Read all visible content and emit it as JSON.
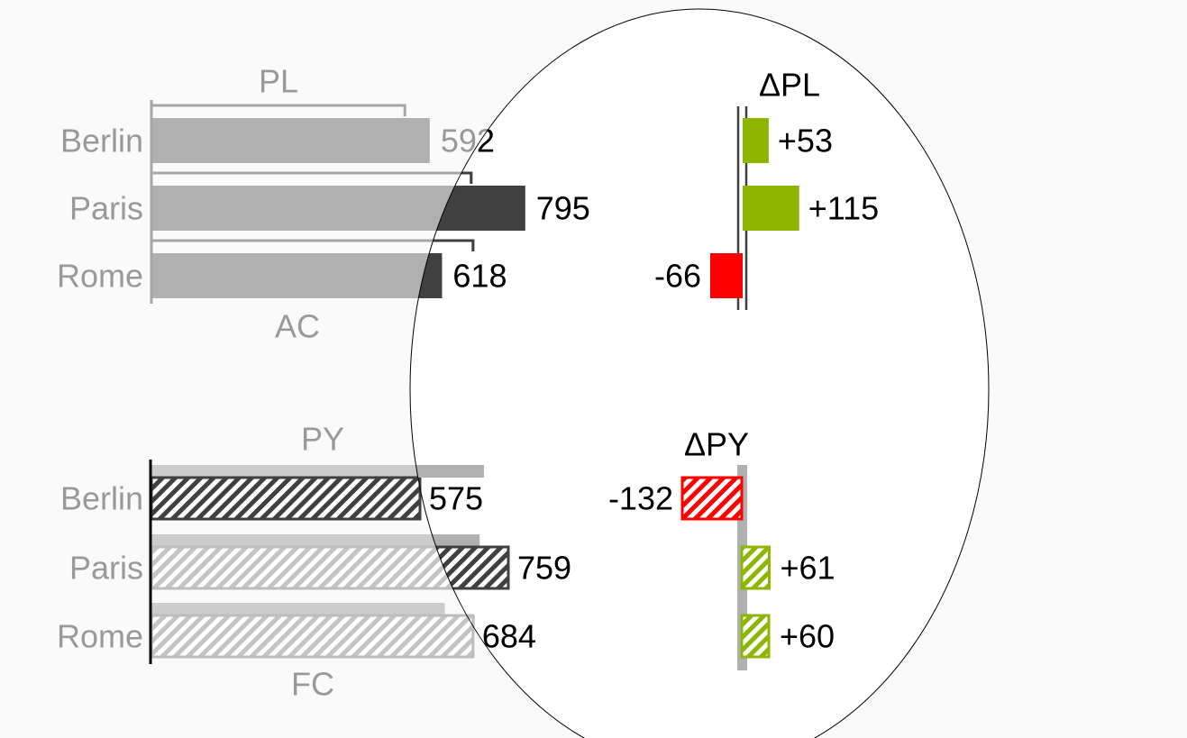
{
  "colors": {
    "background": "#fafafa",
    "gray_bar": "#b0b0b0",
    "dark_bar": "#404040",
    "muted_text": "#999999",
    "positive": "#8db600",
    "negative": "#ff0000",
    "plan_outline": "#a6a6a6",
    "py_bar": "#cccccc",
    "focus_ellipse_fill": "#ffffff"
  },
  "chart_data": [
    {
      "type": "bar",
      "orientation": "horizontal",
      "label_top": "PL",
      "label_bottom": "AC",
      "categories": [
        "Berlin",
        "Paris",
        "Rome"
      ],
      "series": [
        {
          "name": "AC",
          "values": [
            592,
            795,
            618
          ]
        },
        {
          "name": "PL",
          "values": [
            539,
            680,
            684
          ]
        }
      ],
      "value_labels": [
        "592",
        "795",
        "618"
      ]
    },
    {
      "type": "bar",
      "orientation": "horizontal",
      "variance": true,
      "title": "ΔPL",
      "categories": [
        "Berlin",
        "Paris",
        "Rome"
      ],
      "values": [
        53,
        115,
        -66
      ],
      "value_labels": [
        "+53",
        "+115",
        "-66"
      ]
    },
    {
      "type": "bar",
      "orientation": "horizontal",
      "label_top": "PY",
      "label_bottom": "FC",
      "categories": [
        "Berlin",
        "Paris",
        "Rome"
      ],
      "series": [
        {
          "name": "FC",
          "values": [
            575,
            759,
            684
          ]
        },
        {
          "name": "PY",
          "values": [
            707,
            698,
            624
          ]
        }
      ],
      "value_labels": [
        "575",
        "759",
        "684"
      ]
    },
    {
      "type": "bar",
      "orientation": "horizontal",
      "variance": true,
      "title": "ΔPY",
      "categories": [
        "Berlin",
        "Paris",
        "Rome"
      ],
      "values": [
        -132,
        61,
        60
      ],
      "value_labels": [
        "-132",
        "+61",
        "+60"
      ]
    }
  ]
}
